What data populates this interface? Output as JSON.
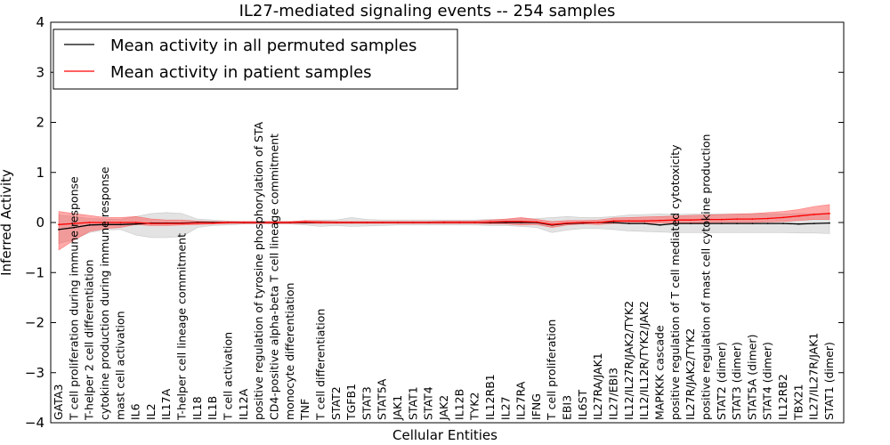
{
  "chart_data": {
    "type": "line",
    "title": "IL27-mediated signaling events -- 254 samples",
    "xlabel": "Cellular Entities",
    "ylabel": "Inferred Activity",
    "ylim": [
      -4,
      4
    ],
    "yticks": [
      4,
      3,
      2,
      1,
      0,
      -1,
      -2,
      -3,
      -4
    ],
    "ytick_labels": [
      "4",
      "3",
      "2",
      "1",
      "0",
      "−1",
      "−2",
      "−3",
      "−4"
    ],
    "grid": false,
    "legend_position": "top-left",
    "categories": [
      "GATA3",
      "T cell proliferation during immune response",
      "T-helper 2 cell differentiation",
      "cytokine production during immune response",
      "mast cell activation",
      "IL6",
      "IL2",
      "IL17A",
      "T-helper cell lineage commitment",
      "IL18",
      "IL1B",
      "T cell activation",
      "IL12A",
      "positive regulation of tyrosine phosphorylation of STA",
      "CD4-positive alpha-beta T cell lineage commitment",
      "monocyte differentiation",
      "TNF",
      "T cell differentiation",
      "STAT2",
      "TGFB1",
      "STAT3",
      "STAT5A",
      "JAK1",
      "STAT1",
      "STAT4",
      "JAK2",
      "IL12B",
      "TYK2",
      "IL12RB1",
      "IL27",
      "IL27RA",
      "IFNG",
      "T cell proliferation",
      "EBI3",
      "IL6ST",
      "IL27RA/JAK1",
      "IL27/EBI3",
      "IL12/IL27R/JAK2/TYK2",
      "IL12/IL12R/TYK2/JAK2",
      "MAPKKK cascade",
      "positive regulation of T cell mediated cytotoxicity",
      "IL27R/JAK2/TYK2",
      "positive regulation of mast cell cytokine production",
      "STAT2 (dimer)",
      "STAT3 (dimer)",
      "STAT5A (dimer)",
      "STAT4 (dimer)",
      "IL12RB2",
      "TBX21",
      "IL27/IL27R/JAK1",
      "STAT1 (dimer)"
    ],
    "series": [
      {
        "name": "Mean activity in all permuted samples",
        "color": "#000000",
        "band_color": "#b0b0b0",
        "values": [
          -0.14,
          -0.1,
          -0.05,
          -0.04,
          -0.04,
          -0.03,
          -0.01,
          -0.01,
          -0.01,
          0.0,
          0.0,
          0.0,
          0.0,
          0.0,
          0.0,
          0.0,
          0.0,
          0.0,
          0.0,
          0.0,
          0.0,
          0.0,
          0.0,
          0.0,
          0.0,
          0.0,
          0.0,
          0.0,
          0.0,
          0.0,
          0.0,
          0.0,
          -0.05,
          -0.02,
          -0.01,
          0.0,
          0.0,
          -0.02,
          -0.02,
          -0.05,
          -0.02,
          -0.02,
          -0.02,
          -0.02,
          -0.02,
          -0.02,
          -0.02,
          -0.02,
          -0.03,
          -0.02,
          -0.01
        ],
        "lower": [
          -0.42,
          -0.34,
          -0.2,
          -0.15,
          -0.14,
          -0.25,
          -0.3,
          -0.3,
          -0.28,
          -0.1,
          -0.06,
          -0.05,
          -0.03,
          -0.03,
          -0.03,
          -0.03,
          -0.05,
          -0.08,
          -0.06,
          -0.08,
          -0.07,
          -0.06,
          -0.05,
          -0.05,
          -0.05,
          -0.05,
          -0.05,
          -0.05,
          -0.06,
          -0.06,
          -0.08,
          -0.1,
          -0.2,
          -0.15,
          -0.12,
          -0.12,
          -0.14,
          -0.17,
          -0.18,
          -0.19,
          -0.2,
          -0.2,
          -0.2,
          -0.2,
          -0.2,
          -0.2,
          -0.2,
          -0.2,
          -0.21,
          -0.21,
          -0.22
        ],
        "upper": [
          0.15,
          0.12,
          0.08,
          0.07,
          0.06,
          0.12,
          0.18,
          0.2,
          0.18,
          0.07,
          0.05,
          0.03,
          0.02,
          0.02,
          0.02,
          0.02,
          0.04,
          0.05,
          0.05,
          0.1,
          0.06,
          0.05,
          0.05,
          0.05,
          0.05,
          0.05,
          0.05,
          0.05,
          0.06,
          0.06,
          0.08,
          0.08,
          0.1,
          0.12,
          0.1,
          0.1,
          0.12,
          0.15,
          0.16,
          0.17,
          0.16,
          0.17,
          0.17,
          0.17,
          0.17,
          0.17,
          0.17,
          0.17,
          0.18,
          0.18,
          0.19
        ]
      },
      {
        "name": "Mean activity in patient samples",
        "color": "#ff0000",
        "band_color": "#ff4040",
        "values": [
          -0.04,
          -0.02,
          0.0,
          0.0,
          0.0,
          0.0,
          -0.02,
          -0.02,
          -0.02,
          -0.01,
          -0.01,
          0.0,
          0.0,
          0.0,
          0.0,
          0.0,
          0.01,
          0.0,
          0.0,
          0.0,
          0.0,
          0.0,
          0.0,
          0.0,
          0.0,
          0.0,
          0.0,
          0.0,
          0.01,
          0.02,
          0.02,
          0.01,
          -0.04,
          -0.01,
          0.0,
          0.0,
          0.03,
          0.03,
          0.03,
          0.04,
          0.05,
          0.05,
          0.06,
          0.06,
          0.07,
          0.07,
          0.08,
          0.1,
          0.13,
          0.16,
          0.18
        ],
        "lower": [
          -0.55,
          -0.35,
          -0.18,
          -0.12,
          -0.1,
          -0.04,
          -0.06,
          -0.06,
          -0.05,
          -0.04,
          -0.03,
          -0.02,
          -0.02,
          -0.02,
          -0.02,
          -0.02,
          -0.02,
          -0.02,
          -0.02,
          -0.02,
          -0.02,
          -0.02,
          -0.02,
          -0.02,
          -0.02,
          -0.02,
          -0.02,
          -0.02,
          -0.03,
          -0.03,
          -0.05,
          -0.04,
          -0.1,
          -0.05,
          -0.03,
          -0.04,
          -0.02,
          -0.02,
          -0.02,
          -0.01,
          -0.01,
          -0.01,
          0.0,
          0.0,
          0.0,
          0.0,
          0.01,
          0.02,
          0.04,
          0.06,
          0.06
        ],
        "upper": [
          0.22,
          0.18,
          0.14,
          0.1,
          0.1,
          0.12,
          0.07,
          0.05,
          0.05,
          0.03,
          0.02,
          0.02,
          0.02,
          0.02,
          0.02,
          0.02,
          0.04,
          0.03,
          0.02,
          0.02,
          0.02,
          0.02,
          0.02,
          0.02,
          0.02,
          0.03,
          0.03,
          0.03,
          0.05,
          0.07,
          0.1,
          0.06,
          0.02,
          0.04,
          0.04,
          0.05,
          0.09,
          0.1,
          0.11,
          0.12,
          0.13,
          0.14,
          0.15,
          0.16,
          0.17,
          0.18,
          0.2,
          0.22,
          0.26,
          0.32,
          0.36
        ]
      }
    ]
  }
}
